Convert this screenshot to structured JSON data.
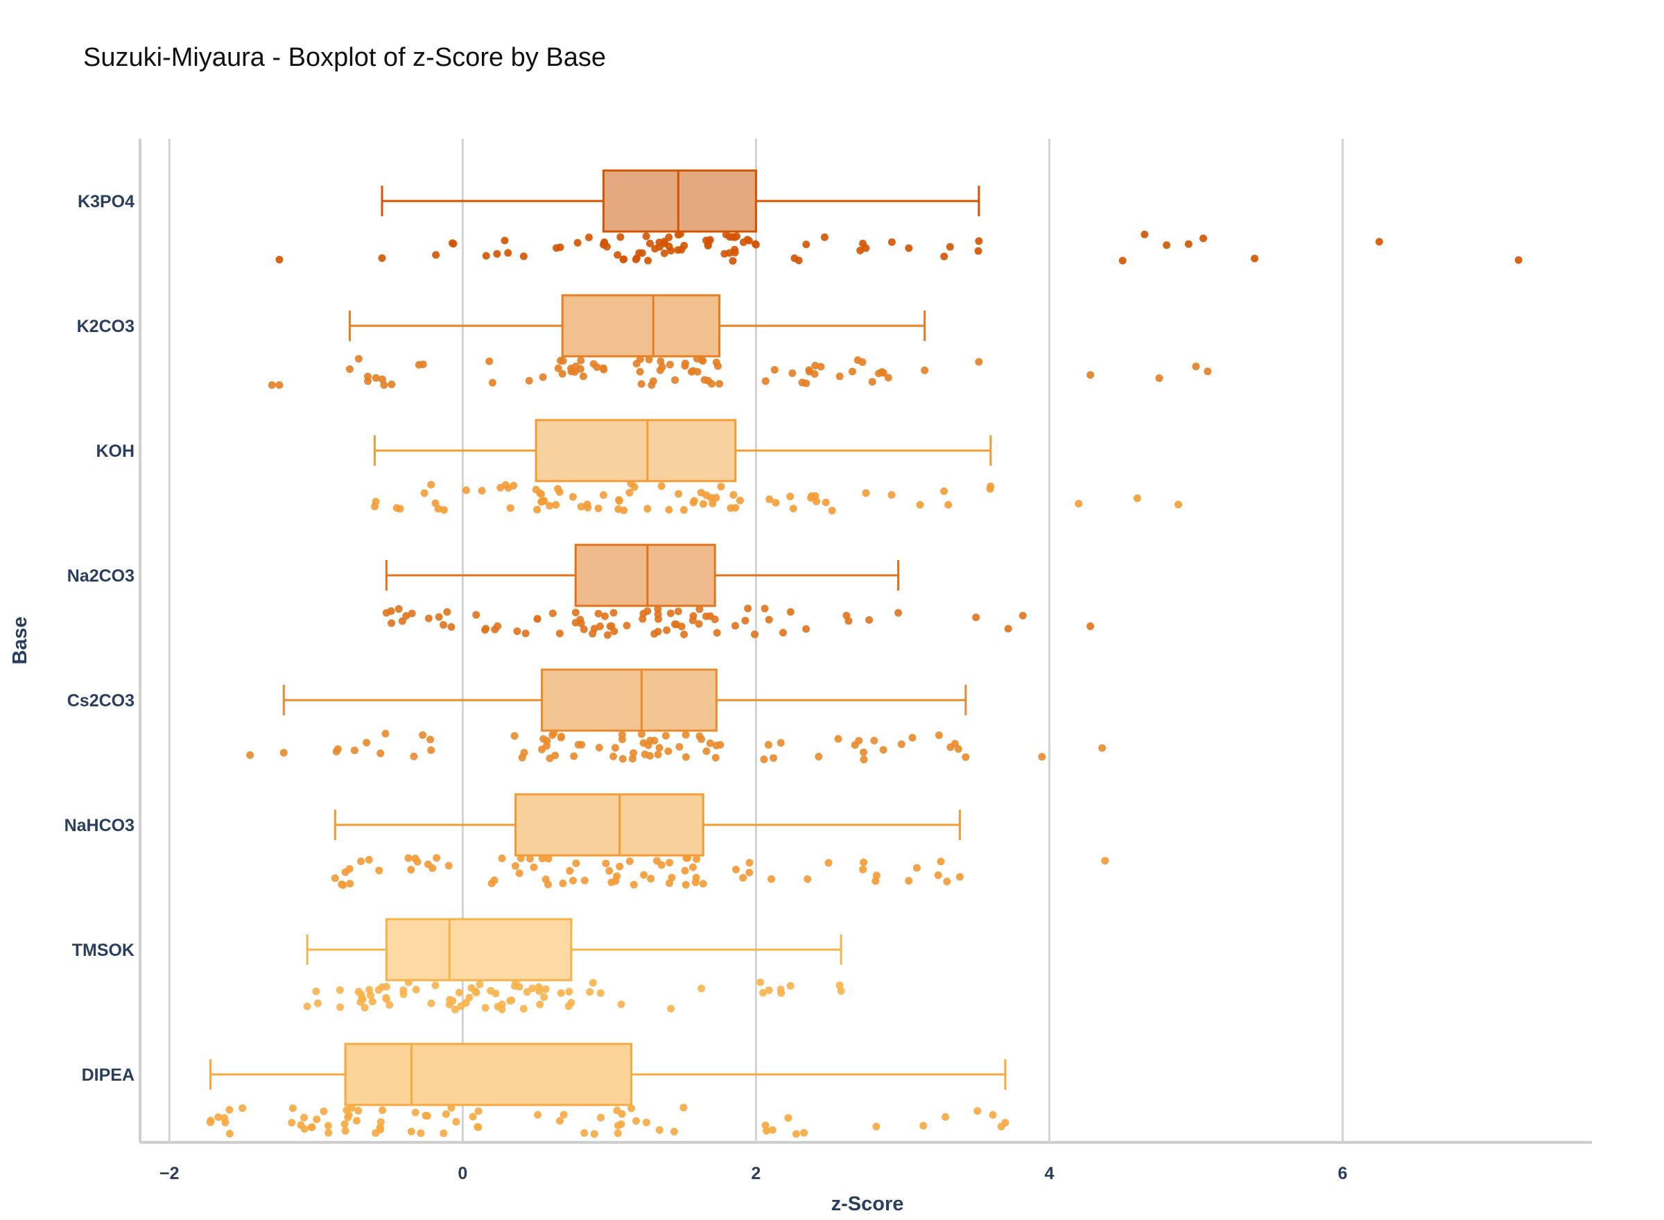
{
  "chart_data": {
    "type": "box",
    "title": "Suzuki-Miyaura - Boxplot of z-Score by Base",
    "xlabel": "z-Score",
    "ylabel": "Base",
    "xlim": [
      -2.2,
      7.7
    ],
    "x_ticks": [
      -2,
      0,
      2,
      4,
      6
    ],
    "x_tick_labels": [
      "−2",
      "0",
      "2",
      "4",
      "6"
    ],
    "grid": "vertical",
    "orientation": "horizontal",
    "show_points": "all",
    "series": [
      {
        "name": "K3PO4",
        "color": "#d35400",
        "fill": "#e5a97f",
        "whisker_low": -0.55,
        "q1": 0.96,
        "median": 1.47,
        "q3": 2.0,
        "whisker_high": 3.52,
        "outliers": [
          -1.25,
          4.5,
          4.65,
          4.8,
          4.95,
          5.05,
          5.4,
          6.25,
          7.2
        ]
      },
      {
        "name": "K2CO3",
        "color": "#e67e22",
        "fill": "#f2c08f",
        "whisker_low": -0.77,
        "q1": 0.68,
        "median": 1.3,
        "q3": 1.75,
        "whisker_high": 3.15,
        "outliers": [
          -1.3,
          -1.25,
          3.52,
          4.28,
          4.75,
          5.0,
          5.08
        ]
      },
      {
        "name": "KOH",
        "color": "#f39c35",
        "fill": "#f8d29e",
        "whisker_low": -0.6,
        "q1": 0.5,
        "median": 1.26,
        "q3": 1.86,
        "whisker_high": 3.6,
        "outliers": [
          4.2,
          4.6,
          4.88
        ]
      },
      {
        "name": "Na2CO3",
        "color": "#e0731c",
        "fill": "#efbb8c",
        "whisker_low": -0.52,
        "q1": 0.77,
        "median": 1.26,
        "q3": 1.72,
        "whisker_high": 2.97,
        "outliers": [
          3.5,
          3.72,
          3.82,
          4.28
        ]
      },
      {
        "name": "Cs2CO3",
        "color": "#ea8a2a",
        "fill": "#f3c592",
        "whisker_low": -1.22,
        "q1": 0.54,
        "median": 1.22,
        "q3": 1.73,
        "whisker_high": 3.43,
        "outliers": [
          -1.45,
          3.95,
          4.36
        ]
      },
      {
        "name": "NaHCO3",
        "color": "#f39a33",
        "fill": "#f8d09c",
        "whisker_low": -0.87,
        "q1": 0.36,
        "median": 1.07,
        "q3": 1.64,
        "whisker_high": 3.39,
        "outliers": [
          4.38
        ]
      },
      {
        "name": "TMSOK",
        "color": "#f7b24a",
        "fill": "#fddaa4",
        "whisker_low": -1.06,
        "q1": -0.52,
        "median": -0.09,
        "q3": 0.74,
        "whisker_high": 2.58,
        "outliers": []
      },
      {
        "name": "DIPEA",
        "color": "#f7a93f",
        "fill": "#fcd49a",
        "whisker_low": -1.72,
        "q1": -0.8,
        "median": -0.35,
        "q3": 1.15,
        "whisker_high": 3.7,
        "outliers": []
      }
    ]
  }
}
